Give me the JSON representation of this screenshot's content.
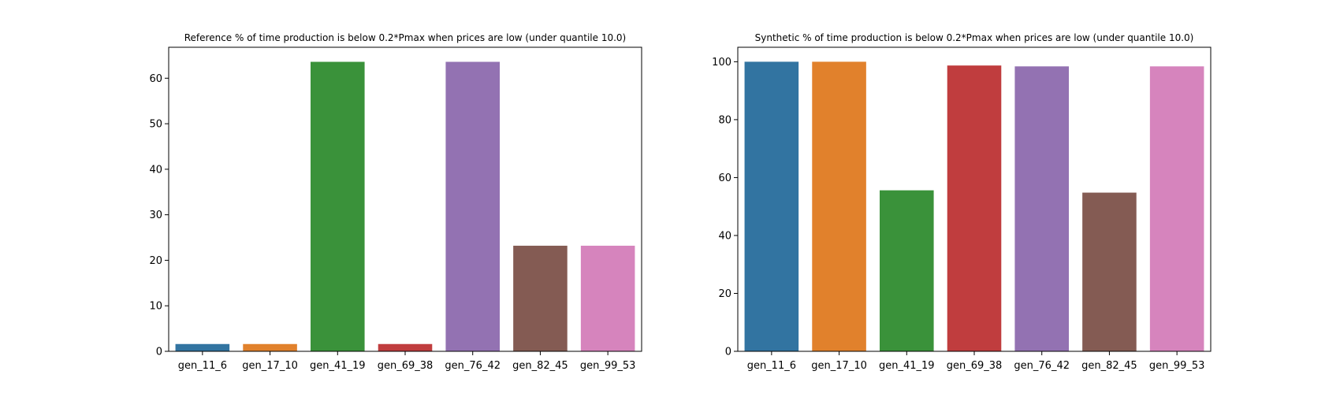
{
  "chart_data": [
    {
      "type": "bar",
      "title": "Reference % of time production is below 0.2*Pmax when prices are low (under quantile 10.0)",
      "xlabel": "",
      "ylabel": "",
      "categories": [
        "gen_11_6",
        "gen_17_10",
        "gen_41_19",
        "gen_69_38",
        "gen_76_42",
        "gen_82_45",
        "gen_99_53"
      ],
      "values": [
        1.6,
        1.6,
        63.6,
        1.6,
        63.6,
        23.2,
        23.2
      ],
      "colors": [
        "#3274a1",
        "#e1812c",
        "#3a923a",
        "#c03d3e",
        "#9372b2",
        "#845b53",
        "#d684bd"
      ],
      "ylim": [
        0,
        66.8
      ],
      "yticks": [
        0,
        10,
        20,
        30,
        40,
        50,
        60
      ],
      "grid": false,
      "legend": "none"
    },
    {
      "type": "bar",
      "title": "Synthetic % of time production is below 0.2*Pmax when prices are low (under quantile 10.0)",
      "xlabel": "",
      "ylabel": "",
      "categories": [
        "gen_11_6",
        "gen_17_10",
        "gen_41_19",
        "gen_69_38",
        "gen_76_42",
        "gen_82_45",
        "gen_99_53"
      ],
      "values": [
        100,
        100,
        55.6,
        98.7,
        98.4,
        54.8,
        98.4
      ],
      "colors": [
        "#3274a1",
        "#e1812c",
        "#3a923a",
        "#c03d3e",
        "#9372b2",
        "#845b53",
        "#d684bd"
      ],
      "ylim": [
        0,
        105
      ],
      "yticks": [
        0,
        20,
        40,
        60,
        80,
        100
      ],
      "grid": false,
      "legend": "none"
    }
  ]
}
